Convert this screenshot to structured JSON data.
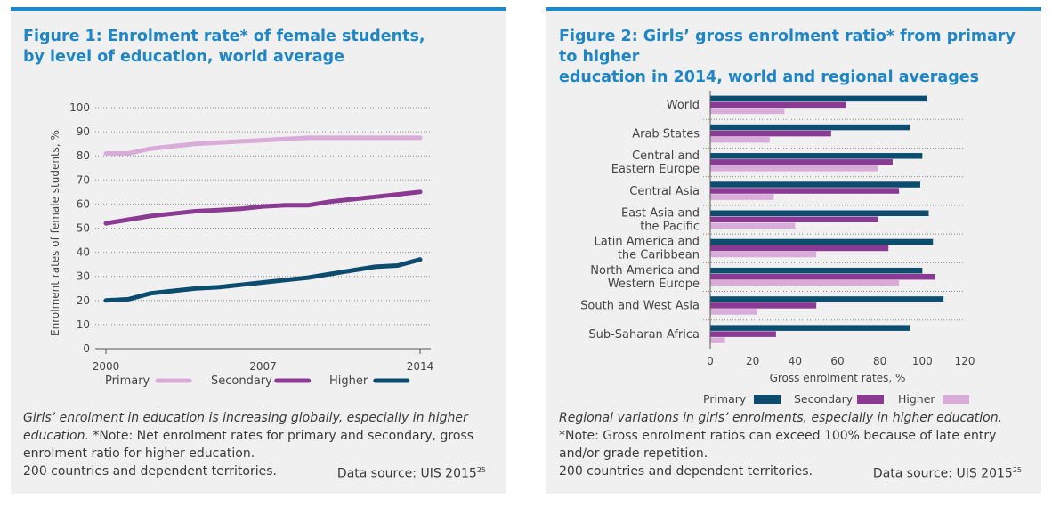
{
  "figure1": {
    "title_line1": "Figure 1: Enrolment rate* of female students,",
    "title_line2": "by level of education, world average",
    "caption_line1": "Girls’ enrolment in education is increasing globally,  especially in higher",
    "caption_line2_italic": "education.",
    "caption_line2_rest": "  *Note: Net enrolment rates for primary and secondary, gross",
    "caption_line3": "enrolment ratio for higher education.",
    "caption_line4": "200 countries and dependent territories.",
    "source": "Data source: UIS 2015",
    "source_sup": "25"
  },
  "figure2": {
    "title_line1": "Figure 2: Girls’ gross enrolment ratio* from primary to higher",
    "title_line2": "education in 2014, world and regional averages",
    "caption_line1": "Regional variations in girls’ enrolments, especially in higher education.",
    "caption_line2": "*Note: Gross enrolment ratios can exceed 100% because of late entry",
    "caption_line3": "and/or grade repetition.",
    "caption_line4": "200 countries and dependent territories.",
    "source": "Data source: UIS 2015",
    "source_sup": "25"
  },
  "colors": {
    "primary": "#d8abd8",
    "secondary": "#8b3a94",
    "higher": "#0c4c6e",
    "title": "#1f86c6",
    "rule": "#1e88c8"
  },
  "chart_data": [
    {
      "type": "line",
      "ylabel": "Enrolment rates of female students, %",
      "xlabel": "",
      "ylim": [
        0,
        100
      ],
      "yticks": [
        0,
        10,
        20,
        30,
        40,
        50,
        60,
        70,
        80,
        90,
        100
      ],
      "xticks": [
        "2000",
        "2007",
        "2014"
      ],
      "grid": "horizontal dotted",
      "legend": "bottom",
      "x": [
        2000,
        2001,
        2002,
        2003,
        2004,
        2005,
        2006,
        2007,
        2008,
        2009,
        2010,
        2011,
        2012,
        2013,
        2014
      ],
      "series": [
        {
          "name": "Primary",
          "color": "#d8abd8",
          "values": [
            81,
            81,
            83,
            84,
            85,
            85.5,
            86,
            86.5,
            87,
            87.5,
            87.5,
            87.5,
            87.5,
            87.5,
            87.5
          ]
        },
        {
          "name": "Secondary",
          "color": "#8b3a94",
          "values": [
            52,
            53.5,
            55,
            56,
            57,
            57.5,
            58,
            59,
            59.5,
            59.5,
            61,
            62,
            63,
            64,
            65
          ]
        },
        {
          "name": "Higher",
          "color": "#0c4c6e",
          "values": [
            20,
            20.5,
            23,
            24,
            25,
            25.5,
            26.5,
            27.5,
            28.5,
            29.5,
            31,
            32.5,
            34,
            34.5,
            37
          ]
        }
      ]
    },
    {
      "type": "bar",
      "orientation": "horizontal",
      "xlabel": "Gross enrolment rates, %",
      "ylabel": "",
      "xlim": [
        0,
        120
      ],
      "xticks": [
        0,
        20,
        40,
        60,
        80,
        100,
        120
      ],
      "grid": "horizontal dotted separators",
      "legend": "bottom",
      "categories": [
        [
          "World"
        ],
        [
          "Arab States"
        ],
        [
          "Central and",
          "Eastern Europe"
        ],
        [
          "Central Asia"
        ],
        [
          "East Asia and",
          "the Pacific"
        ],
        [
          "Latin America and",
          "the Caribbean"
        ],
        [
          "North America and",
          "Western Europe"
        ],
        [
          "South and West Asia"
        ],
        [
          "Sub-Saharan Africa"
        ]
      ],
      "series": [
        {
          "name": "Primary",
          "color": "#0c4c6e",
          "values": [
            102,
            94,
            100,
            99,
            103,
            105,
            100,
            110,
            94
          ]
        },
        {
          "name": "Secondary",
          "color": "#8b3a94",
          "values": [
            64,
            57,
            86,
            89,
            79,
            84,
            106,
            50,
            31
          ]
        },
        {
          "name": "Higher",
          "color": "#d8abd8",
          "values": [
            35,
            28,
            79,
            30,
            40,
            50,
            89,
            22,
            7
          ]
        }
      ]
    }
  ]
}
